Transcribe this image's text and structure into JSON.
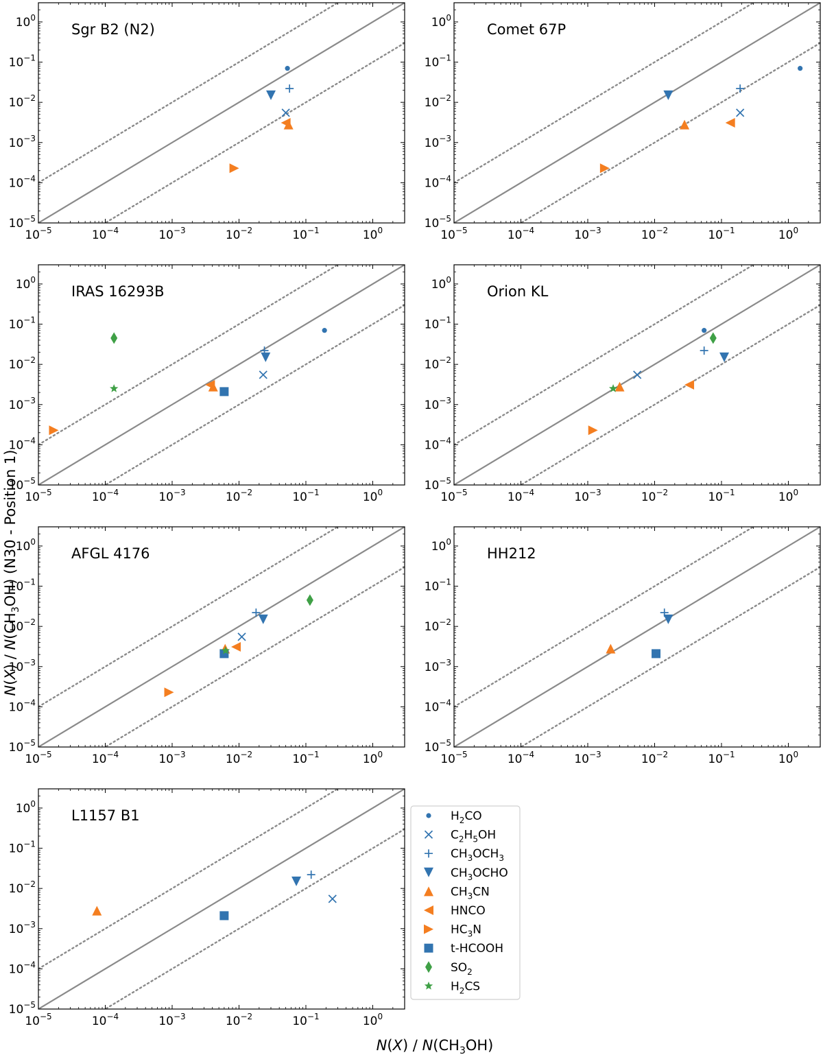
{
  "figure": {
    "xlabel": "N(X) / N(CH3OH)",
    "ylabel": "N(X) / N(CH3OH) (N30 - Position 1)"
  },
  "colors": {
    "blue": "#3274b0",
    "orange": "#f47e20",
    "green": "#3fa046",
    "line": "#8a8a8a"
  },
  "axes": {
    "xlim": [
      1e-05,
      3.0
    ],
    "ylim": [
      1e-05,
      3.0
    ],
    "scale": "log",
    "ticks": [
      {
        "value": 1e-05,
        "base": "10",
        "exp": "−5"
      },
      {
        "value": 0.0001,
        "base": "10",
        "exp": "−4"
      },
      {
        "value": 0.001,
        "base": "10",
        "exp": "−3"
      },
      {
        "value": 0.01,
        "base": "10",
        "exp": "−2"
      },
      {
        "value": 0.1,
        "base": "10",
        "exp": "−1"
      },
      {
        "value": 1,
        "base": "10",
        "exp": "0"
      }
    ],
    "reference_lines": [
      {
        "style": "solid",
        "ratio": 1
      },
      {
        "style": "dotted",
        "ratio": 10
      },
      {
        "style": "dotted",
        "ratio": 0.1
      }
    ]
  },
  "legend": {
    "placement": "right of bottom-left panel",
    "entries": [
      {
        "key": "H2CO",
        "label_parts": [
          [
            "H",
            ""
          ],
          [
            "2",
            "sub"
          ],
          [
            "CO",
            ""
          ]
        ],
        "marker": "circle-small",
        "color": "#3274b0"
      },
      {
        "key": "C2H5OH",
        "label_parts": [
          [
            "C",
            ""
          ],
          [
            "2",
            "sub"
          ],
          [
            "H",
            ""
          ],
          [
            "5",
            "sub"
          ],
          [
            "OH",
            ""
          ]
        ],
        "marker": "x",
        "color": "#3274b0"
      },
      {
        "key": "CH3OCH3",
        "label_parts": [
          [
            "CH",
            ""
          ],
          [
            "3",
            "sub"
          ],
          [
            "OCH",
            ""
          ],
          [
            "3",
            "sub"
          ]
        ],
        "marker": "plus",
        "color": "#3274b0"
      },
      {
        "key": "CH3OCHO",
        "label_parts": [
          [
            "CH",
            ""
          ],
          [
            "3",
            "sub"
          ],
          [
            "OCHO",
            ""
          ]
        ],
        "marker": "triangle-down",
        "color": "#3274b0"
      },
      {
        "key": "CH3CN",
        "label_parts": [
          [
            "CH",
            ""
          ],
          [
            "3",
            "sub"
          ],
          [
            "CN",
            ""
          ]
        ],
        "marker": "triangle-up",
        "color": "#f47e20"
      },
      {
        "key": "HNCO",
        "label_parts": [
          [
            "HNCO",
            ""
          ]
        ],
        "marker": "triangle-left",
        "color": "#f47e20"
      },
      {
        "key": "HC3N",
        "label_parts": [
          [
            "HC",
            ""
          ],
          [
            "3",
            "sub"
          ],
          [
            "N",
            ""
          ]
        ],
        "marker": "triangle-right",
        "color": "#f47e20"
      },
      {
        "key": "t-HCOOH",
        "label_parts": [
          [
            "t-HCOOH",
            ""
          ]
        ],
        "marker": "square",
        "color": "#3274b0"
      },
      {
        "key": "SO2",
        "label_parts": [
          [
            "SO",
            ""
          ],
          [
            "2",
            "sub"
          ]
        ],
        "marker": "diamond",
        "color": "#3fa046"
      },
      {
        "key": "H2CS",
        "label_parts": [
          [
            "H",
            ""
          ],
          [
            "2",
            "sub"
          ],
          [
            "CS",
            ""
          ]
        ],
        "marker": "star",
        "color": "#3fa046"
      }
    ]
  },
  "chart_data": [
    {
      "type": "scatter",
      "title": "Sgr B2 (N2)",
      "xlabel": "N(X) / N(CH3OH)",
      "ylabel": "N(X) / N(CH3OH) (N30 - Position 1)",
      "xlim": [
        1e-05,
        3.0
      ],
      "ylim": [
        1e-05,
        3.0
      ],
      "points": [
        {
          "species": "H2CO",
          "x": 0.053,
          "y": 0.07
        },
        {
          "species": "C2H5OH",
          "x": 0.05,
          "y": 0.0055
        },
        {
          "species": "CH3OCH3",
          "x": 0.057,
          "y": 0.022
        },
        {
          "species": "CH3OCHO",
          "x": 0.03,
          "y": 0.015
        },
        {
          "species": "CH3CN",
          "x": 0.055,
          "y": 0.0028
        },
        {
          "species": "HNCO",
          "x": 0.05,
          "y": 0.0031
        },
        {
          "species": "HC3N",
          "x": 0.0085,
          "y": 0.00023
        }
      ]
    },
    {
      "type": "scatter",
      "title": "Comet 67P",
      "xlabel": "N(X) / N(CH3OH)",
      "ylabel": "N(X) / N(CH3OH) (N30 - Position 1)",
      "xlim": [
        1e-05,
        3.0
      ],
      "ylim": [
        1e-05,
        3.0
      ],
      "points": [
        {
          "species": "H2CO",
          "x": 1.5,
          "y": 0.07
        },
        {
          "species": "C2H5OH",
          "x": 0.19,
          "y": 0.0055
        },
        {
          "species": "CH3OCH3",
          "x": 0.19,
          "y": 0.022
        },
        {
          "species": "CH3OCHO",
          "x": 0.016,
          "y": 0.015
        },
        {
          "species": "CH3CN",
          "x": 0.028,
          "y": 0.0028
        },
        {
          "species": "HNCO",
          "x": 0.135,
          "y": 0.0031
        },
        {
          "species": "HC3N",
          "x": 0.0018,
          "y": 0.00023
        }
      ]
    },
    {
      "type": "scatter",
      "title": "IRAS 16293B",
      "xlabel": "N(X) / N(CH3OH)",
      "ylabel": "N(X) / N(CH3OH) (N30 - Position 1)",
      "xlim": [
        1e-05,
        3.0
      ],
      "ylim": [
        1e-05,
        3.0
      ],
      "points": [
        {
          "species": "H2CO",
          "x": 0.19,
          "y": 0.07
        },
        {
          "species": "C2H5OH",
          "x": 0.023,
          "y": 0.0055
        },
        {
          "species": "CH3OCH3",
          "x": 0.024,
          "y": 0.022
        },
        {
          "species": "CH3OCHO",
          "x": 0.025,
          "y": 0.015
        },
        {
          "species": "CH3CN",
          "x": 0.0041,
          "y": 0.0028
        },
        {
          "species": "HNCO",
          "x": 0.0037,
          "y": 0.0031
        },
        {
          "species": "HC3N",
          "x": 1.7e-05,
          "y": 0.00023
        },
        {
          "species": "t-HCOOH",
          "x": 0.006,
          "y": 0.0021
        },
        {
          "species": "SO2",
          "x": 0.000135,
          "y": 0.045
        },
        {
          "species": "H2CS",
          "x": 0.000135,
          "y": 0.0025
        }
      ]
    },
    {
      "type": "scatter",
      "title": "Orion KL",
      "xlabel": "N(X) / N(CH3OH)",
      "ylabel": "N(X) / N(CH3OH) (N30 - Position 1)",
      "xlim": [
        1e-05,
        3.0
      ],
      "ylim": [
        1e-05,
        3.0
      ],
      "points": [
        {
          "species": "H2CO",
          "x": 0.055,
          "y": 0.07
        },
        {
          "species": "C2H5OH",
          "x": 0.0055,
          "y": 0.0055
        },
        {
          "species": "CH3OCH3",
          "x": 0.055,
          "y": 0.022
        },
        {
          "species": "CH3OCHO",
          "x": 0.11,
          "y": 0.015
        },
        {
          "species": "CH3CN",
          "x": 0.003,
          "y": 0.0028
        },
        {
          "species": "HNCO",
          "x": 0.033,
          "y": 0.0031
        },
        {
          "species": "HC3N",
          "x": 0.0012,
          "y": 0.00023
        },
        {
          "species": "SO2",
          "x": 0.075,
          "y": 0.045
        },
        {
          "species": "H2CS",
          "x": 0.0024,
          "y": 0.0025
        }
      ]
    },
    {
      "type": "scatter",
      "title": "AFGL 4176",
      "xlabel": "N(X) / N(CH3OH)",
      "ylabel": "N(X) / N(CH3OH) (N30 - Position 1)",
      "xlim": [
        1e-05,
        3.0
      ],
      "ylim": [
        1e-05,
        3.0
      ],
      "points": [
        {
          "species": "C2H5OH",
          "x": 0.011,
          "y": 0.0055
        },
        {
          "species": "CH3OCH3",
          "x": 0.018,
          "y": 0.022
        },
        {
          "species": "CH3OCHO",
          "x": 0.023,
          "y": 0.015
        },
        {
          "species": "CH3CN",
          "x": 0.0062,
          "y": 0.0028
        },
        {
          "species": "HNCO",
          "x": 0.009,
          "y": 0.0031
        },
        {
          "species": "HC3N",
          "x": 0.0009,
          "y": 0.00023
        },
        {
          "species": "t-HCOOH",
          "x": 0.006,
          "y": 0.0021
        },
        {
          "species": "SO2",
          "x": 0.115,
          "y": 0.045
        },
        {
          "species": "H2CS",
          "x": 0.0063,
          "y": 0.0025
        }
      ]
    },
    {
      "type": "scatter",
      "title": "HH212",
      "xlabel": "N(X) / N(CH3OH)",
      "ylabel": "N(X) / N(CH3OH) (N30 - Position 1)",
      "xlim": [
        1e-05,
        3.0
      ],
      "ylim": [
        1e-05,
        3.0
      ],
      "points": [
        {
          "species": "CH3OCH3",
          "x": 0.014,
          "y": 0.022
        },
        {
          "species": "CH3OCHO",
          "x": 0.016,
          "y": 0.015
        },
        {
          "species": "CH3CN",
          "x": 0.0022,
          "y": 0.0028
        },
        {
          "species": "t-HCOOH",
          "x": 0.0105,
          "y": 0.0021
        }
      ]
    },
    {
      "type": "scatter",
      "title": "L1157 B1",
      "xlabel": "N(X) / N(CH3OH)",
      "ylabel": "N(X) / N(CH3OH) (N30 - Position 1)",
      "xlim": [
        1e-05,
        3.0
      ],
      "ylim": [
        1e-05,
        3.0
      ],
      "points": [
        {
          "species": "C2H5OH",
          "x": 0.25,
          "y": 0.0055
        },
        {
          "species": "CH3OCH3",
          "x": 0.12,
          "y": 0.022
        },
        {
          "species": "CH3OCHO",
          "x": 0.072,
          "y": 0.015
        },
        {
          "species": "CH3CN",
          "x": 7.5e-05,
          "y": 0.0028
        },
        {
          "species": "t-HCOOH",
          "x": 0.006,
          "y": 0.0021
        }
      ]
    }
  ]
}
